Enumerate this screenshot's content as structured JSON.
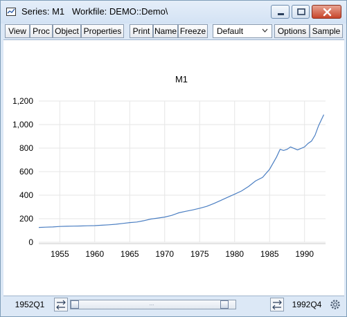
{
  "window": {
    "title": "Series: M1   Workfile: DEMO::Demo\\"
  },
  "toolbar": {
    "buttons": [
      "View",
      "Proc",
      "Object",
      "Properties",
      "Print",
      "Name",
      "Freeze",
      "Options",
      "Sample"
    ],
    "select_value": "Default"
  },
  "chart_data": {
    "type": "line",
    "title": "M1",
    "xlabel": "",
    "ylabel": "",
    "xlim": [
      1952,
      1993
    ],
    "ylim": [
      0,
      1200
    ],
    "xticks": [
      "1955",
      "1960",
      "1965",
      "1970",
      "1975",
      "1980",
      "1985",
      "1990"
    ],
    "yticks": [
      "0",
      "200",
      "400",
      "600",
      "800",
      "1,000",
      "1,200"
    ],
    "grid": true,
    "series": [
      {
        "name": "",
        "x": [
          1952.0,
          1953.0,
          1954.0,
          1955.0,
          1956.0,
          1957.0,
          1958.0,
          1959.0,
          1960.0,
          1961.0,
          1962.0,
          1963.0,
          1964.0,
          1965.0,
          1966.0,
          1967.0,
          1968.0,
          1969.0,
          1970.0,
          1971.0,
          1972.0,
          1973.0,
          1974.0,
          1975.0,
          1976.0,
          1977.0,
          1978.0,
          1979.0,
          1980.0,
          1981.0,
          1982.0,
          1983.0,
          1984.0,
          1985.0,
          1986.0,
          1986.5,
          1987.0,
          1987.5,
          1988.0,
          1989.0,
          1990.0,
          1990.5,
          1991.0,
          1991.5,
          1992.0,
          1992.75
        ],
        "y": [
          126,
          128,
          130,
          134,
          136,
          137,
          138,
          140,
          141,
          145,
          148,
          153,
          160,
          167,
          172,
          183,
          197,
          205,
          214,
          228,
          250,
          263,
          275,
          289,
          305,
          328,
          355,
          382,
          408,
          436,
          474,
          521,
          551,
          620,
          725,
          790,
          780,
          790,
          810,
          785,
          810,
          840,
          860,
          910,
          990,
          1085
        ]
      }
    ]
  },
  "statusbar": {
    "start_date": "1952Q1",
    "end_date": "1992Q4",
    "slider_grip": "..."
  },
  "colors": {
    "line": "#4a7ec2",
    "grid": "#e6e6e6",
    "close_button": "#c7452b"
  }
}
